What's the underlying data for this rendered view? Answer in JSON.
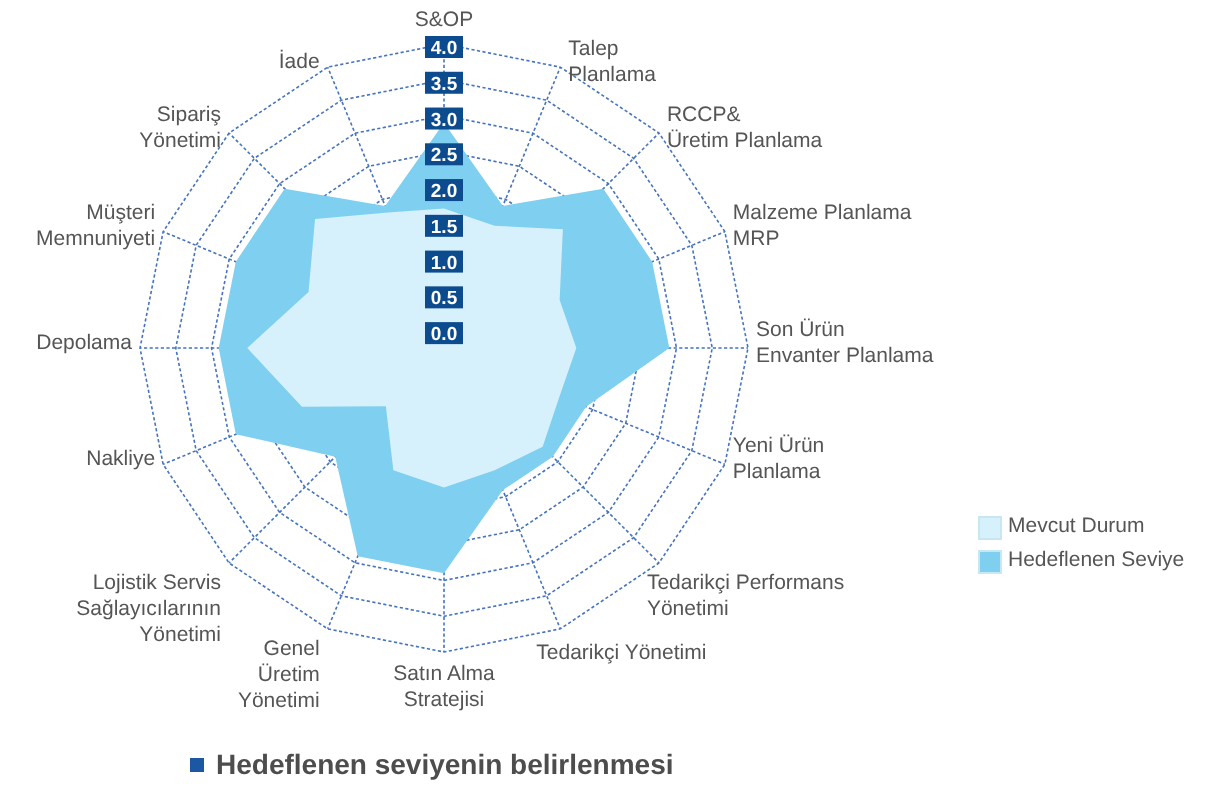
{
  "chart_data": {
    "type": "radar",
    "title": "Hedeflenen seviyenin belirlenmesi",
    "categories": [
      "S&OP",
      "Talep\nPlanlama",
      "RCCP&\nÜretim Planlama",
      "Malzeme Planlama\nMRP",
      "Son Ürün\nEnvanter Planlama",
      "Yeni Ürün\nPlanlama",
      "Tedarikçi Performans\nYönetimi",
      "Tedarikçi Yönetimi",
      "Satın Alma\nStratejisi",
      "Genel\nÜretim\nYönetimi",
      "Lojistik Servis\nSağlayıcılarının\nYönetimi",
      "Nakliye",
      "Depolama",
      "Müşteri\nMemnuniyeti",
      "Sipariş\nYönetimi",
      "İade"
    ],
    "series": [
      {
        "name": "Mevcut Durum",
        "color": "#d6f1fb",
        "values": [
          1.7,
          1.6,
          2.1,
          1.5,
          1.6,
          1.5,
          1.7,
          1.6,
          1.7,
          1.6,
          0.9,
          1.9,
          2.5,
          1.8,
          2.3,
          1.8
        ]
      },
      {
        "name": "Hedeflenen Seviye",
        "color": "#7ecff0",
        "values": [
          2.9,
          1.9,
          2.9,
          2.9,
          2.9,
          1.9,
          1.9,
          1.9,
          2.9,
          2.9,
          1.9,
          2.9,
          2.9,
          2.9,
          2.9,
          1.9
        ]
      }
    ],
    "ylim": [
      -0.25,
      4
    ],
    "yticks": [
      {
        "value": 0,
        "label": "0.0"
      },
      {
        "value": 0.5,
        "label": "0.5"
      },
      {
        "value": 1,
        "label": "1.0"
      },
      {
        "value": 1.5,
        "label": "1.5"
      },
      {
        "value": 2,
        "label": "2.0"
      },
      {
        "value": 2.5,
        "label": "2.5"
      },
      {
        "value": 3,
        "label": "3.0"
      },
      {
        "value": 3.5,
        "label": "3.5"
      },
      {
        "value": 4,
        "label": "4.0"
      }
    ],
    "grid": true,
    "legend": "right"
  }
}
